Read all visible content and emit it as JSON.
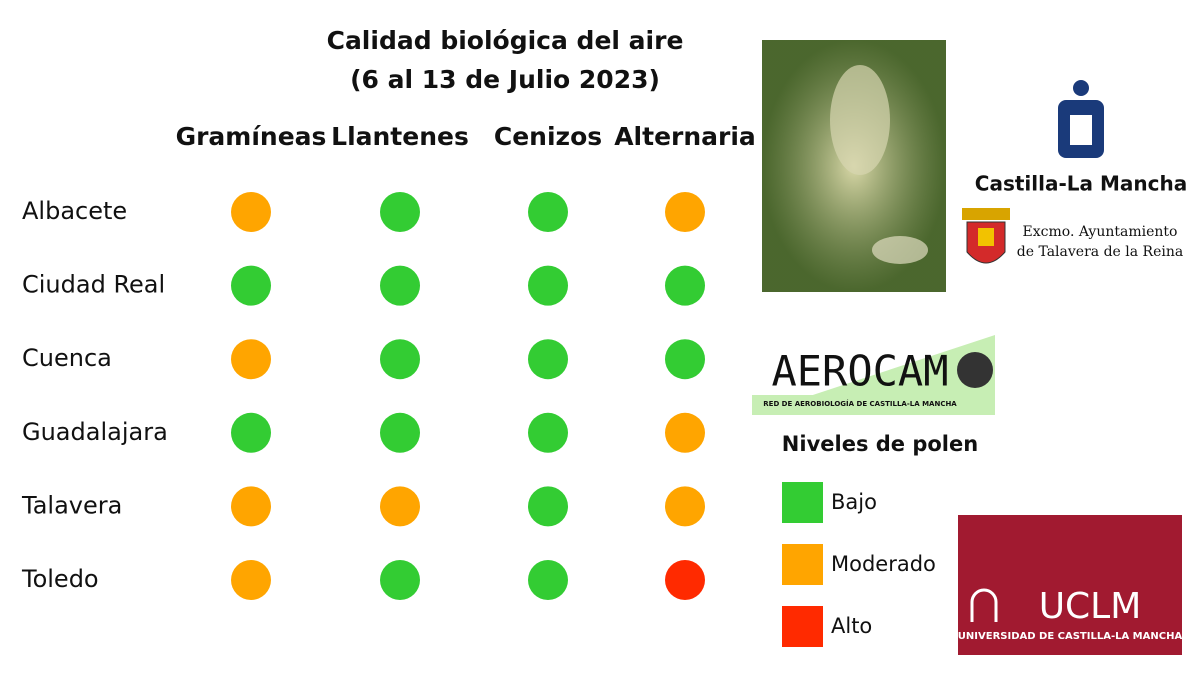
{
  "title": [
    "Calidad biológica del aire",
    "(6 al 13 de Julio 2023)"
  ],
  "table": {
    "columns": [
      "Gramíneas",
      "Llantenes",
      "Cenizos",
      "Alternaria"
    ],
    "rows": [
      {
        "name": "Albacete",
        "levels": [
          1,
          0,
          0,
          1
        ]
      },
      {
        "name": "Ciudad Real",
        "levels": [
          0,
          0,
          0,
          0
        ]
      },
      {
        "name": "Cuenca",
        "levels": [
          1,
          0,
          0,
          0
        ]
      },
      {
        "name": "Guadalajara",
        "levels": [
          0,
          0,
          0,
          1
        ]
      },
      {
        "name": "Talavera",
        "levels": [
          1,
          1,
          0,
          1
        ]
      },
      {
        "name": "Toledo",
        "levels": [
          1,
          0,
          0,
          2
        ]
      }
    ]
  },
  "legend": {
    "title": "Niveles de polen",
    "items": [
      {
        "label": "Bajo",
        "color": "#33cc33"
      },
      {
        "label": "Moderado",
        "color": "#ffa500"
      },
      {
        "label": "Alto",
        "color": "#ff2a00"
      }
    ]
  },
  "logos": {
    "castilla": "Castilla-La Mancha",
    "talavera": [
      "Excmo. Ayuntamiento",
      "de Talavera de la Reina"
    ],
    "aerocam": [
      "AEROCAM",
      "RED DE AEROBIOLOGÍA DE CASTILLA-LA MANCHA"
    ],
    "uclm": [
      "UCLM",
      "UNIVERSIDAD DE CASTILLA-LA MANCHA"
    ]
  }
}
